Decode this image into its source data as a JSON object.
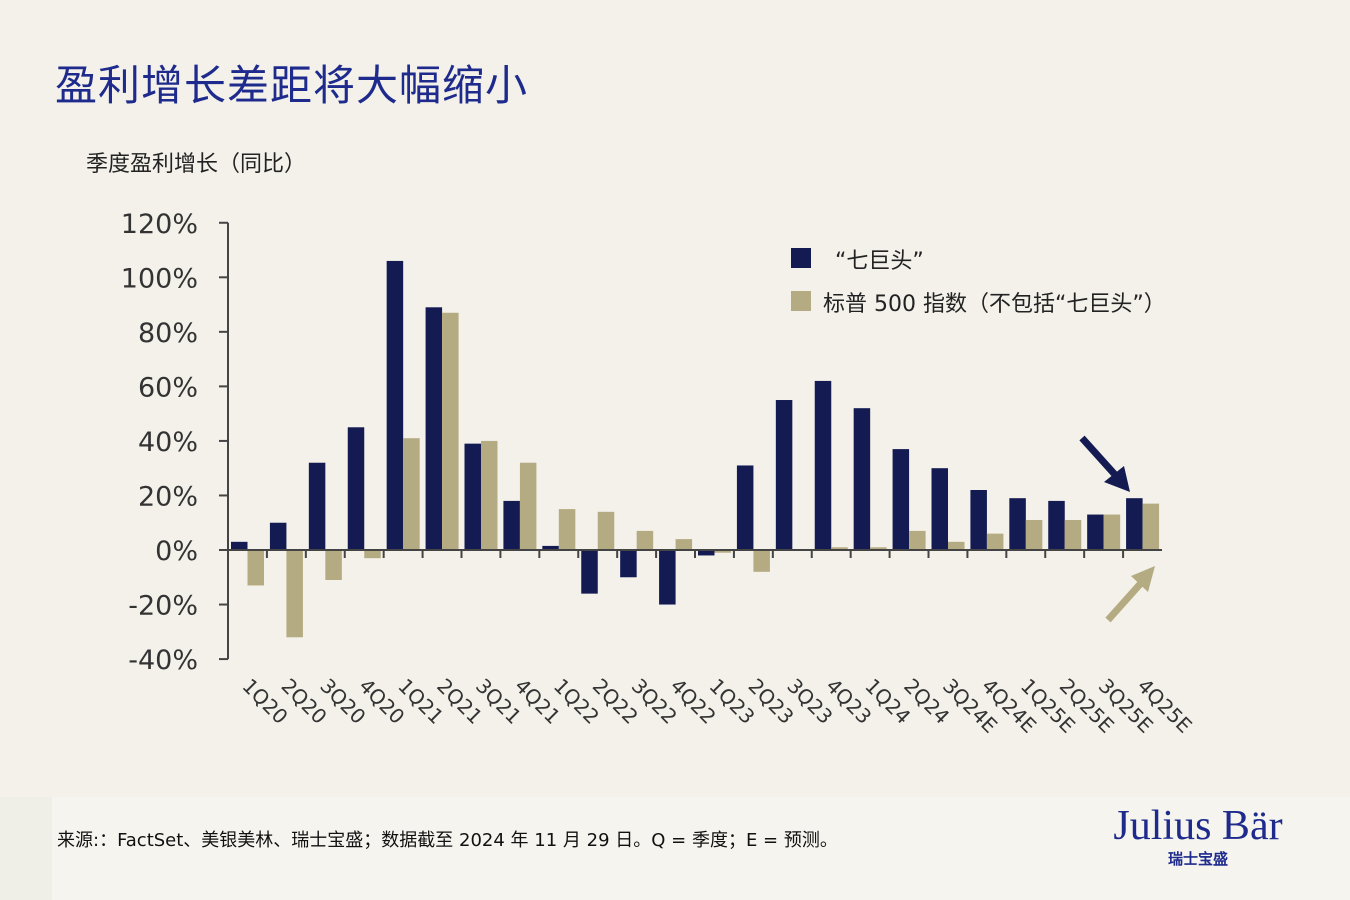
{
  "title": "盈利增长差距将大幅缩小",
  "subtitle": "季度盈利增长（同比）",
  "footer": {
    "source": "来源:：FactSet、美银美林、瑞士宝盛；数据截至 2024 年 11 月 29 日。Q = 季度；E = 预测。"
  },
  "logo": {
    "main": "Julius Bär",
    "sub": "瑞士宝盛"
  },
  "colors": {
    "navy": "#141b52",
    "tan": "#b5ab82",
    "title": "#1e2a8c"
  },
  "chart_data": {
    "type": "bar",
    "title": "季度盈利增长（同比）",
    "categories": [
      "1Q20",
      "2Q20",
      "3Q20",
      "4Q20",
      "1Q21",
      "2Q21",
      "3Q21",
      "4Q21",
      "1Q22",
      "2Q22",
      "3Q22",
      "4Q22",
      "1Q23",
      "2Q23",
      "3Q23",
      "4Q23",
      "1Q24",
      "2Q24",
      "3Q24E",
      "4Q24E",
      "1Q25E",
      "2Q25E",
      "3Q25E",
      "4Q25E"
    ],
    "series": [
      {
        "name": "“七巨头”",
        "color": "#141b52",
        "values": [
          3,
          10,
          32,
          45,
          106,
          89,
          39,
          18,
          1.5,
          -16,
          -10,
          -20,
          -2,
          31,
          55,
          62,
          52,
          37,
          30,
          22,
          19,
          18,
          13,
          19
        ]
      },
      {
        "name": "标普 500 指数（不包括“七巨头”）",
        "color": "#b5ab82",
        "values": [
          -13,
          -32,
          -11,
          -3,
          41,
          87,
          40,
          32,
          15,
          14,
          7,
          4,
          -1,
          -8,
          0,
          1,
          1,
          7,
          3,
          6,
          11,
          11,
          13,
          17
        ]
      }
    ],
    "ylim": [
      -40,
      120
    ],
    "yticks": [
      -40,
      -20,
      0,
      20,
      40,
      60,
      80,
      100,
      120
    ],
    "ytick_labels": [
      "-40%",
      "-20%",
      "0%",
      "20%",
      "40%",
      "60%",
      "80%",
      "100%",
      "120%"
    ],
    "legend": "top-right",
    "grid": false,
    "annotations": [
      "navy arrow pointing down to 4Q25E",
      "tan arrow pointing up to 4Q25E"
    ]
  }
}
